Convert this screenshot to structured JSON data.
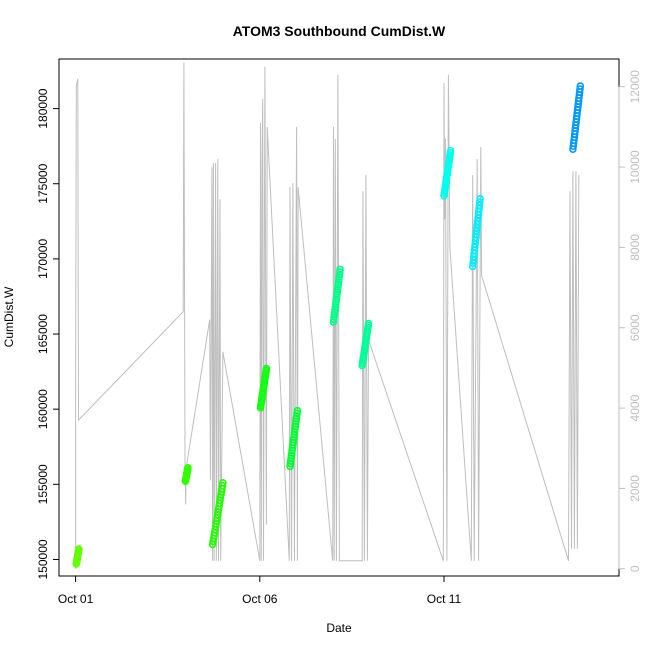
{
  "chart_data": {
    "type": "scatter",
    "title": "ATOM3 Southbound CumDist.W",
    "xlabel": "Date",
    "ylabel": "CumDist.W",
    "x_unit": "day of October (fractional)",
    "xlim": [
      0.55,
      15.75
    ],
    "ylim": [
      148900,
      183300
    ],
    "x_ticks": [
      {
        "value": 1,
        "label": "Oct 01"
      },
      {
        "value": 6,
        "label": "Oct 06"
      },
      {
        "value": 11,
        "label": "Oct 11"
      }
    ],
    "y_ticks": [
      150000,
      155000,
      160000,
      165000,
      170000,
      175000,
      180000
    ],
    "y2_lim": [
      -180,
      12690
    ],
    "y2_ticks": [
      0,
      2000,
      4000,
      6000,
      8000,
      10000,
      12000
    ],
    "series_colors": {
      "primary": "#7fff00",
      "secondary": "#bebebe"
    },
    "series": [
      {
        "role": "CumDist.W",
        "segments": [
          {
            "x_start": 1.02,
            "x_end": 1.09,
            "y_start": 149700,
            "y_end": 150700,
            "color": "#66ff00"
          },
          {
            "x_start": 3.98,
            "x_end": 4.05,
            "y_start": 155200,
            "y_end": 156100,
            "color": "#33ff00"
          },
          {
            "x_start": 4.72,
            "x_end": 5.0,
            "y_start": 151000,
            "y_end": 155100,
            "color": "#22ff00"
          },
          {
            "x_start": 6.02,
            "x_end": 6.18,
            "y_start": 160100,
            "y_end": 162700,
            "color": "#11ff11"
          },
          {
            "x_start": 6.82,
            "x_end": 7.02,
            "y_start": 156200,
            "y_end": 159900,
            "color": "#00ff33"
          },
          {
            "x_start": 8.0,
            "x_end": 8.18,
            "y_start": 165800,
            "y_end": 169300,
            "color": "#00ff88"
          },
          {
            "x_start": 8.78,
            "x_end": 8.95,
            "y_start": 162900,
            "y_end": 165700,
            "color": "#00ff99"
          },
          {
            "x_start": 11.0,
            "x_end": 11.18,
            "y_start": 174200,
            "y_end": 177200,
            "color": "#00ffee"
          },
          {
            "x_start": 11.78,
            "x_end": 11.98,
            "y_start": 169500,
            "y_end": 174000,
            "color": "#00eeff"
          },
          {
            "x_start": 14.5,
            "x_end": 14.7,
            "y_start": 177300,
            "y_end": 181500,
            "color": "#0099ff"
          }
        ]
      },
      {
        "role": "secondary (right axis)",
        "points": [
          [
            1.0,
            0
          ],
          [
            1.0,
            4600
          ],
          [
            1.02,
            12000
          ],
          [
            1.06,
            12200
          ],
          [
            1.08,
            3700
          ],
          [
            3.92,
            6400
          ],
          [
            3.94,
            12600
          ],
          [
            3.97,
            2700
          ],
          [
            3.99,
            1600
          ],
          [
            4.0,
            2500
          ],
          [
            4.64,
            6200
          ],
          [
            4.66,
            2200
          ],
          [
            4.7,
            10000
          ],
          [
            4.72,
            200
          ],
          [
            4.74,
            10100
          ],
          [
            4.76,
            200
          ],
          [
            4.8,
            10100
          ],
          [
            4.82,
            200
          ],
          [
            4.86,
            10200
          ],
          [
            4.88,
            200
          ],
          [
            4.92,
            9200
          ],
          [
            4.94,
            200
          ],
          [
            5.0,
            5400
          ],
          [
            6.0,
            200
          ],
          [
            6.02,
            11100
          ],
          [
            6.04,
            200
          ],
          [
            6.06,
            10000
          ],
          [
            6.08,
            11700
          ],
          [
            6.1,
            200
          ],
          [
            6.14,
            12500
          ],
          [
            6.18,
            1100
          ],
          [
            6.2,
            11000
          ],
          [
            6.8,
            200
          ],
          [
            6.82,
            9500
          ],
          [
            6.86,
            200
          ],
          [
            6.9,
            9600
          ],
          [
            6.94,
            200
          ],
          [
            7.0,
            11000
          ],
          [
            7.02,
            200
          ],
          [
            7.04,
            9500
          ],
          [
            7.98,
            200
          ],
          [
            8.0,
            11000
          ],
          [
            8.02,
            200
          ],
          [
            8.05,
            10700
          ],
          [
            8.08,
            200
          ],
          [
            8.12,
            12300
          ],
          [
            8.16,
            200
          ],
          [
            8.78,
            200
          ],
          [
            8.8,
            9400
          ],
          [
            8.84,
            200
          ],
          [
            8.88,
            9800
          ],
          [
            8.92,
            200
          ],
          [
            8.95,
            5700
          ],
          [
            10.98,
            200
          ],
          [
            11.0,
            12100
          ],
          [
            11.02,
            8700
          ],
          [
            11.04,
            10700
          ],
          [
            11.08,
            200
          ],
          [
            11.12,
            12300
          ],
          [
            11.16,
            8000
          ],
          [
            11.74,
            200
          ],
          [
            11.78,
            9800
          ],
          [
            11.82,
            200
          ],
          [
            11.9,
            10200
          ],
          [
            11.94,
            200
          ],
          [
            12.0,
            10500
          ],
          [
            12.02,
            7300
          ],
          [
            14.38,
            200
          ],
          [
            14.42,
            9400
          ],
          [
            14.46,
            500
          ],
          [
            14.5,
            9900
          ],
          [
            14.54,
            500
          ],
          [
            14.58,
            9900
          ],
          [
            14.62,
            500
          ],
          [
            14.66,
            9800
          ]
        ]
      }
    ]
  }
}
